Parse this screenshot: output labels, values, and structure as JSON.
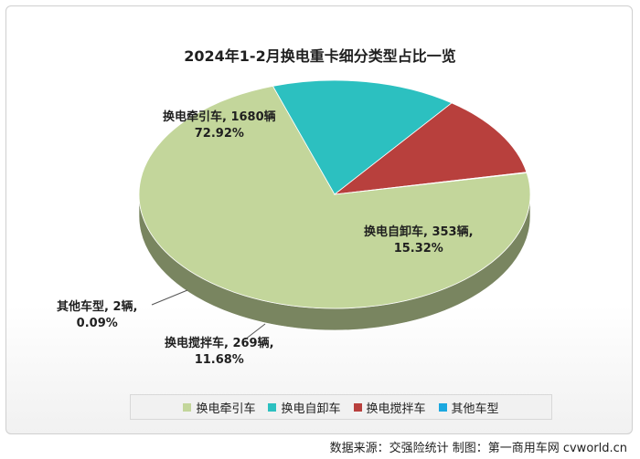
{
  "chart_data": {
    "type": "pie",
    "title": "2024年1-2月换电重卡细分类型占比一览",
    "categories": [
      "换电牵引车",
      "换电自卸车",
      "换电搅拌车",
      "其他车型"
    ],
    "values": [
      1680,
      353,
      269,
      2
    ],
    "percents": [
      "72.92%",
      "15.32%",
      "11.68%",
      "0.09%"
    ],
    "data_labels": [
      "换电牵引车, 1680辆",
      "换电自卸车, 353辆,",
      "换电搅拌车, 269辆,",
      "其他车型, 2辆,"
    ],
    "colors": [
      "#c3d69b",
      "#2cc0c0",
      "#b8403d",
      "#1ba8e0"
    ],
    "legend": [
      "换电牵引车",
      "换电自卸车",
      "换电搅拌车",
      "其他车型"
    ],
    "legend_position": "bottom"
  },
  "source": "数据来源：交强险统计  制图：第一商用车网 cvworld.cn"
}
